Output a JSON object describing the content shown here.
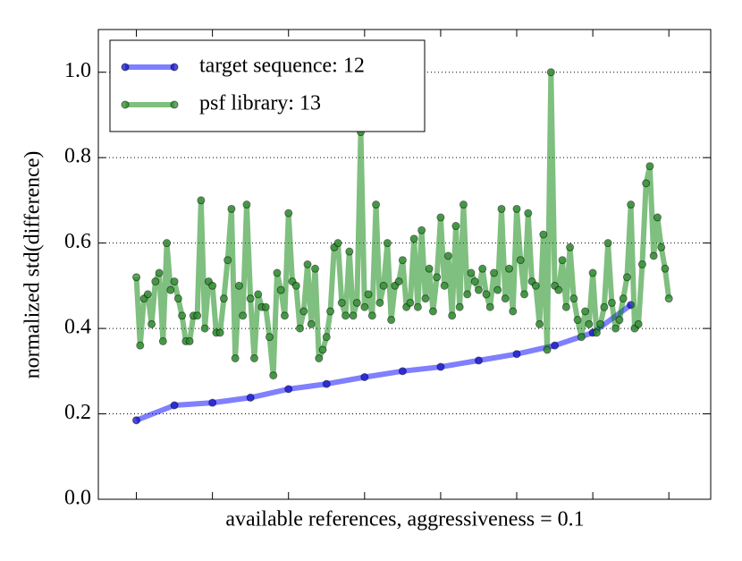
{
  "chart_data": {
    "type": "line",
    "xlabel": "available references, aggressiveness = 0.1",
    "ylabel": "normalized std(difference)",
    "xlim": [
      -10,
      151
    ],
    "ylim": [
      0,
      1.1
    ],
    "xticks": [
      0,
      20,
      40,
      60,
      80,
      100,
      120,
      140
    ],
    "yticks": [
      {
        "value": 0,
        "label": "0.0"
      },
      {
        "value": 0.2,
        "label": "0.2"
      },
      {
        "value": 0.4,
        "label": "0.4"
      },
      {
        "value": 0.6,
        "label": "0.6"
      },
      {
        "value": 0.8,
        "label": "0.8"
      },
      {
        "value": 1.0,
        "label": "1.0"
      }
    ],
    "grid": true,
    "legend": "upper left",
    "series": [
      {
        "name": "target sequence: 12",
        "color": "#0000ff",
        "marker_color": "#1010cc",
        "x": [
          0,
          10,
          20,
          30,
          40,
          50,
          60,
          70,
          80,
          90,
          100,
          110,
          120,
          130
        ],
        "values": [
          0.185,
          0.22,
          0.226,
          0.238,
          0.258,
          0.27,
          0.286,
          0.3,
          0.31,
          0.325,
          0.34,
          0.36,
          0.39,
          0.455
        ]
      },
      {
        "name": "psf library: 13",
        "color": "#008000",
        "marker_color": "#2e8b2e",
        "x": [
          0,
          1,
          2,
          3,
          4,
          5,
          6,
          7,
          8,
          9,
          10,
          11,
          12,
          13,
          14,
          15,
          16,
          17,
          18,
          19,
          20,
          21,
          22,
          23,
          24,
          25,
          26,
          27,
          28,
          29,
          30,
          31,
          32,
          33,
          34,
          35,
          36,
          37,
          38,
          39,
          40,
          41,
          42,
          43,
          44,
          45,
          46,
          47,
          48,
          49,
          50,
          51,
          52,
          53,
          54,
          55,
          56,
          57,
          58,
          59,
          60,
          61,
          62,
          63,
          64,
          65,
          66,
          67,
          68,
          69,
          70,
          71,
          72,
          73,
          74,
          75,
          76,
          77,
          78,
          79,
          80,
          81,
          82,
          83,
          84,
          85,
          86,
          87,
          88,
          89,
          90,
          91,
          92,
          93,
          94,
          95,
          96,
          97,
          98,
          99,
          100,
          101,
          102,
          103,
          104,
          105,
          106,
          107,
          108,
          109,
          110,
          111,
          112,
          113,
          114,
          115,
          116,
          117,
          118,
          119,
          120,
          121,
          122,
          123,
          124,
          125,
          126,
          127,
          128,
          129,
          130,
          131,
          132,
          133,
          134,
          135,
          136,
          137,
          138,
          139,
          140
        ],
        "values": [
          0.52,
          0.36,
          0.47,
          0.48,
          0.41,
          0.51,
          0.53,
          0.37,
          0.6,
          0.49,
          0.51,
          0.47,
          0.43,
          0.37,
          0.37,
          0.43,
          0.43,
          0.7,
          0.4,
          0.51,
          0.5,
          0.39,
          0.39,
          0.47,
          0.56,
          0.68,
          0.33,
          0.5,
          0.43,
          0.69,
          0.47,
          0.33,
          0.48,
          0.45,
          0.45,
          0.38,
          0.29,
          0.53,
          0.49,
          0.43,
          0.67,
          0.51,
          0.5,
          0.4,
          0.44,
          0.55,
          0.41,
          0.54,
          0.33,
          0.35,
          0.38,
          0.44,
          0.59,
          0.6,
          0.46,
          0.43,
          0.58,
          0.43,
          0.46,
          0.86,
          0.45,
          0.48,
          0.43,
          0.69,
          0.46,
          0.5,
          0.6,
          0.42,
          0.5,
          0.51,
          0.56,
          0.45,
          0.46,
          0.61,
          0.45,
          0.63,
          0.47,
          0.54,
          0.44,
          0.52,
          0.66,
          0.5,
          0.57,
          0.43,
          0.64,
          0.45,
          0.69,
          0.48,
          0.53,
          0.51,
          0.49,
          0.54,
          0.48,
          0.45,
          0.53,
          0.49,
          0.68,
          0.47,
          0.54,
          0.44,
          0.68,
          0.56,
          0.48,
          0.67,
          0.51,
          0.5,
          0.41,
          0.62,
          0.35,
          1.0,
          0.5,
          0.49,
          0.56,
          0.45,
          0.59,
          0.47,
          0.42,
          0.38,
          0.44,
          0.41,
          0.53,
          0.39,
          0.41,
          0.45,
          0.6,
          0.46,
          0.4,
          0.42,
          0.47,
          0.52,
          0.69,
          0.4,
          0.41,
          0.55,
          0.74,
          0.78,
          0.57,
          0.66,
          0.59,
          0.54,
          0.47
        ]
      }
    ]
  }
}
